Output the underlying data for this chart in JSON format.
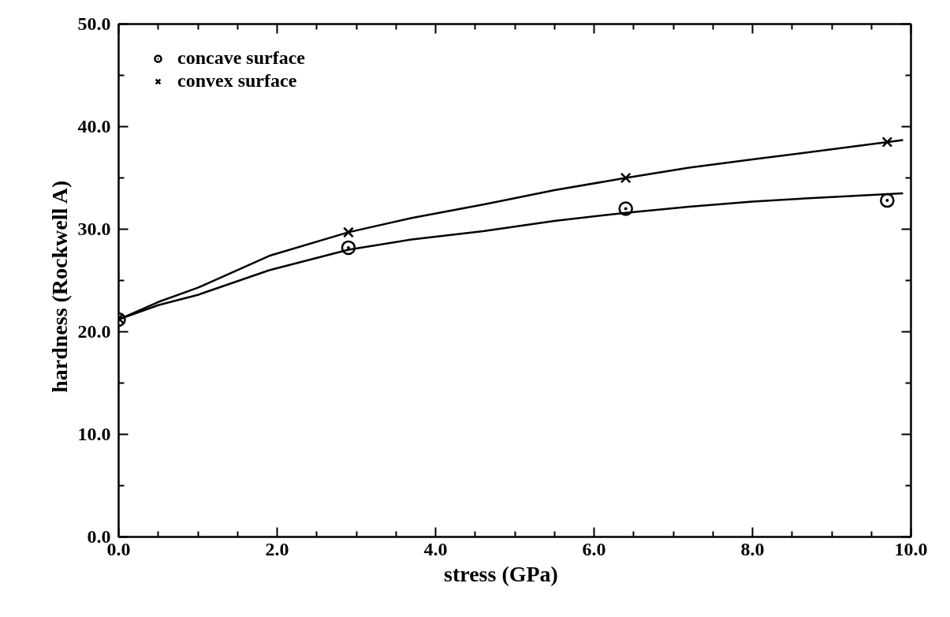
{
  "chart_data": {
    "type": "scatter",
    "xlabel": "stress      (GPa)",
    "ylabel": "hardness   (Rockwell A)",
    "xlim": [
      0,
      10
    ],
    "ylim": [
      0,
      50
    ],
    "xticks": [
      {
        "value": 0,
        "label": "0.0"
      },
      {
        "value": 0.5,
        "label": null
      },
      {
        "value": 1,
        "label": null
      },
      {
        "value": 1.5,
        "label": null
      },
      {
        "value": 2,
        "label": "2.0"
      },
      {
        "value": 2.5,
        "label": null
      },
      {
        "value": 3,
        "label": null
      },
      {
        "value": 3.5,
        "label": null
      },
      {
        "value": 4,
        "label": "4.0"
      },
      {
        "value": 4.5,
        "label": null
      },
      {
        "value": 5,
        "label": null
      },
      {
        "value": 5.5,
        "label": null
      },
      {
        "value": 6,
        "label": "6.0"
      },
      {
        "value": 6.5,
        "label": null
      },
      {
        "value": 7,
        "label": null
      },
      {
        "value": 7.5,
        "label": null
      },
      {
        "value": 8,
        "label": "8.0"
      },
      {
        "value": 8.5,
        "label": null
      },
      {
        "value": 9,
        "label": null
      },
      {
        "value": 9.5,
        "label": null
      },
      {
        "value": 10,
        "label": "10.0"
      }
    ],
    "yticks": [
      {
        "value": 0,
        "label": "0.0"
      },
      {
        "value": 5,
        "label": null
      },
      {
        "value": 10,
        "label": "10.0"
      },
      {
        "value": 15,
        "label": null
      },
      {
        "value": 20,
        "label": "20.0"
      },
      {
        "value": 25,
        "label": null
      },
      {
        "value": 30,
        "label": "30.0"
      },
      {
        "value": 35,
        "label": null
      },
      {
        "value": 40,
        "label": "40.0"
      },
      {
        "value": 45,
        "label": null
      },
      {
        "value": 50,
        "label": "50.0"
      }
    ],
    "grid": false,
    "legend": "top left",
    "series": [
      {
        "name": "concave surface",
        "color": "#000000",
        "marker": "circle",
        "x": [
          0,
          2.9,
          6.4,
          9.7
        ],
        "values": [
          21.2,
          28.2,
          32.0,
          32.8
        ]
      },
      {
        "name": "convex surface",
        "color": "#000000",
        "marker": "cross",
        "x": [
          0,
          2.9,
          6.4,
          9.7
        ],
        "values": [
          21.3,
          29.7,
          35.0,
          38.5
        ]
      },
      {
        "type": "line",
        "color": "#000000",
        "x": [
          0,
          0.5,
          1,
          1.9,
          2.9,
          3.7,
          4.6,
          5.5,
          6.4,
          7.2,
          8,
          8.9,
          9.9
        ],
        "values": [
          21.2,
          22.6,
          23.6,
          26.0,
          28.0,
          29.0,
          29.8,
          30.8,
          31.6,
          32.2,
          32.7,
          33.1,
          33.5
        ]
      },
      {
        "type": "line",
        "color": "#000000",
        "x": [
          0,
          0.5,
          1,
          1.9,
          2.9,
          3.7,
          4.6,
          5.5,
          6.4,
          7.2,
          8,
          8.9,
          9.9
        ],
        "values": [
          21.2,
          22.9,
          24.3,
          27.4,
          29.7,
          31.1,
          32.4,
          33.8,
          35.0,
          36.0,
          36.8,
          37.7,
          38.7
        ]
      }
    ]
  }
}
